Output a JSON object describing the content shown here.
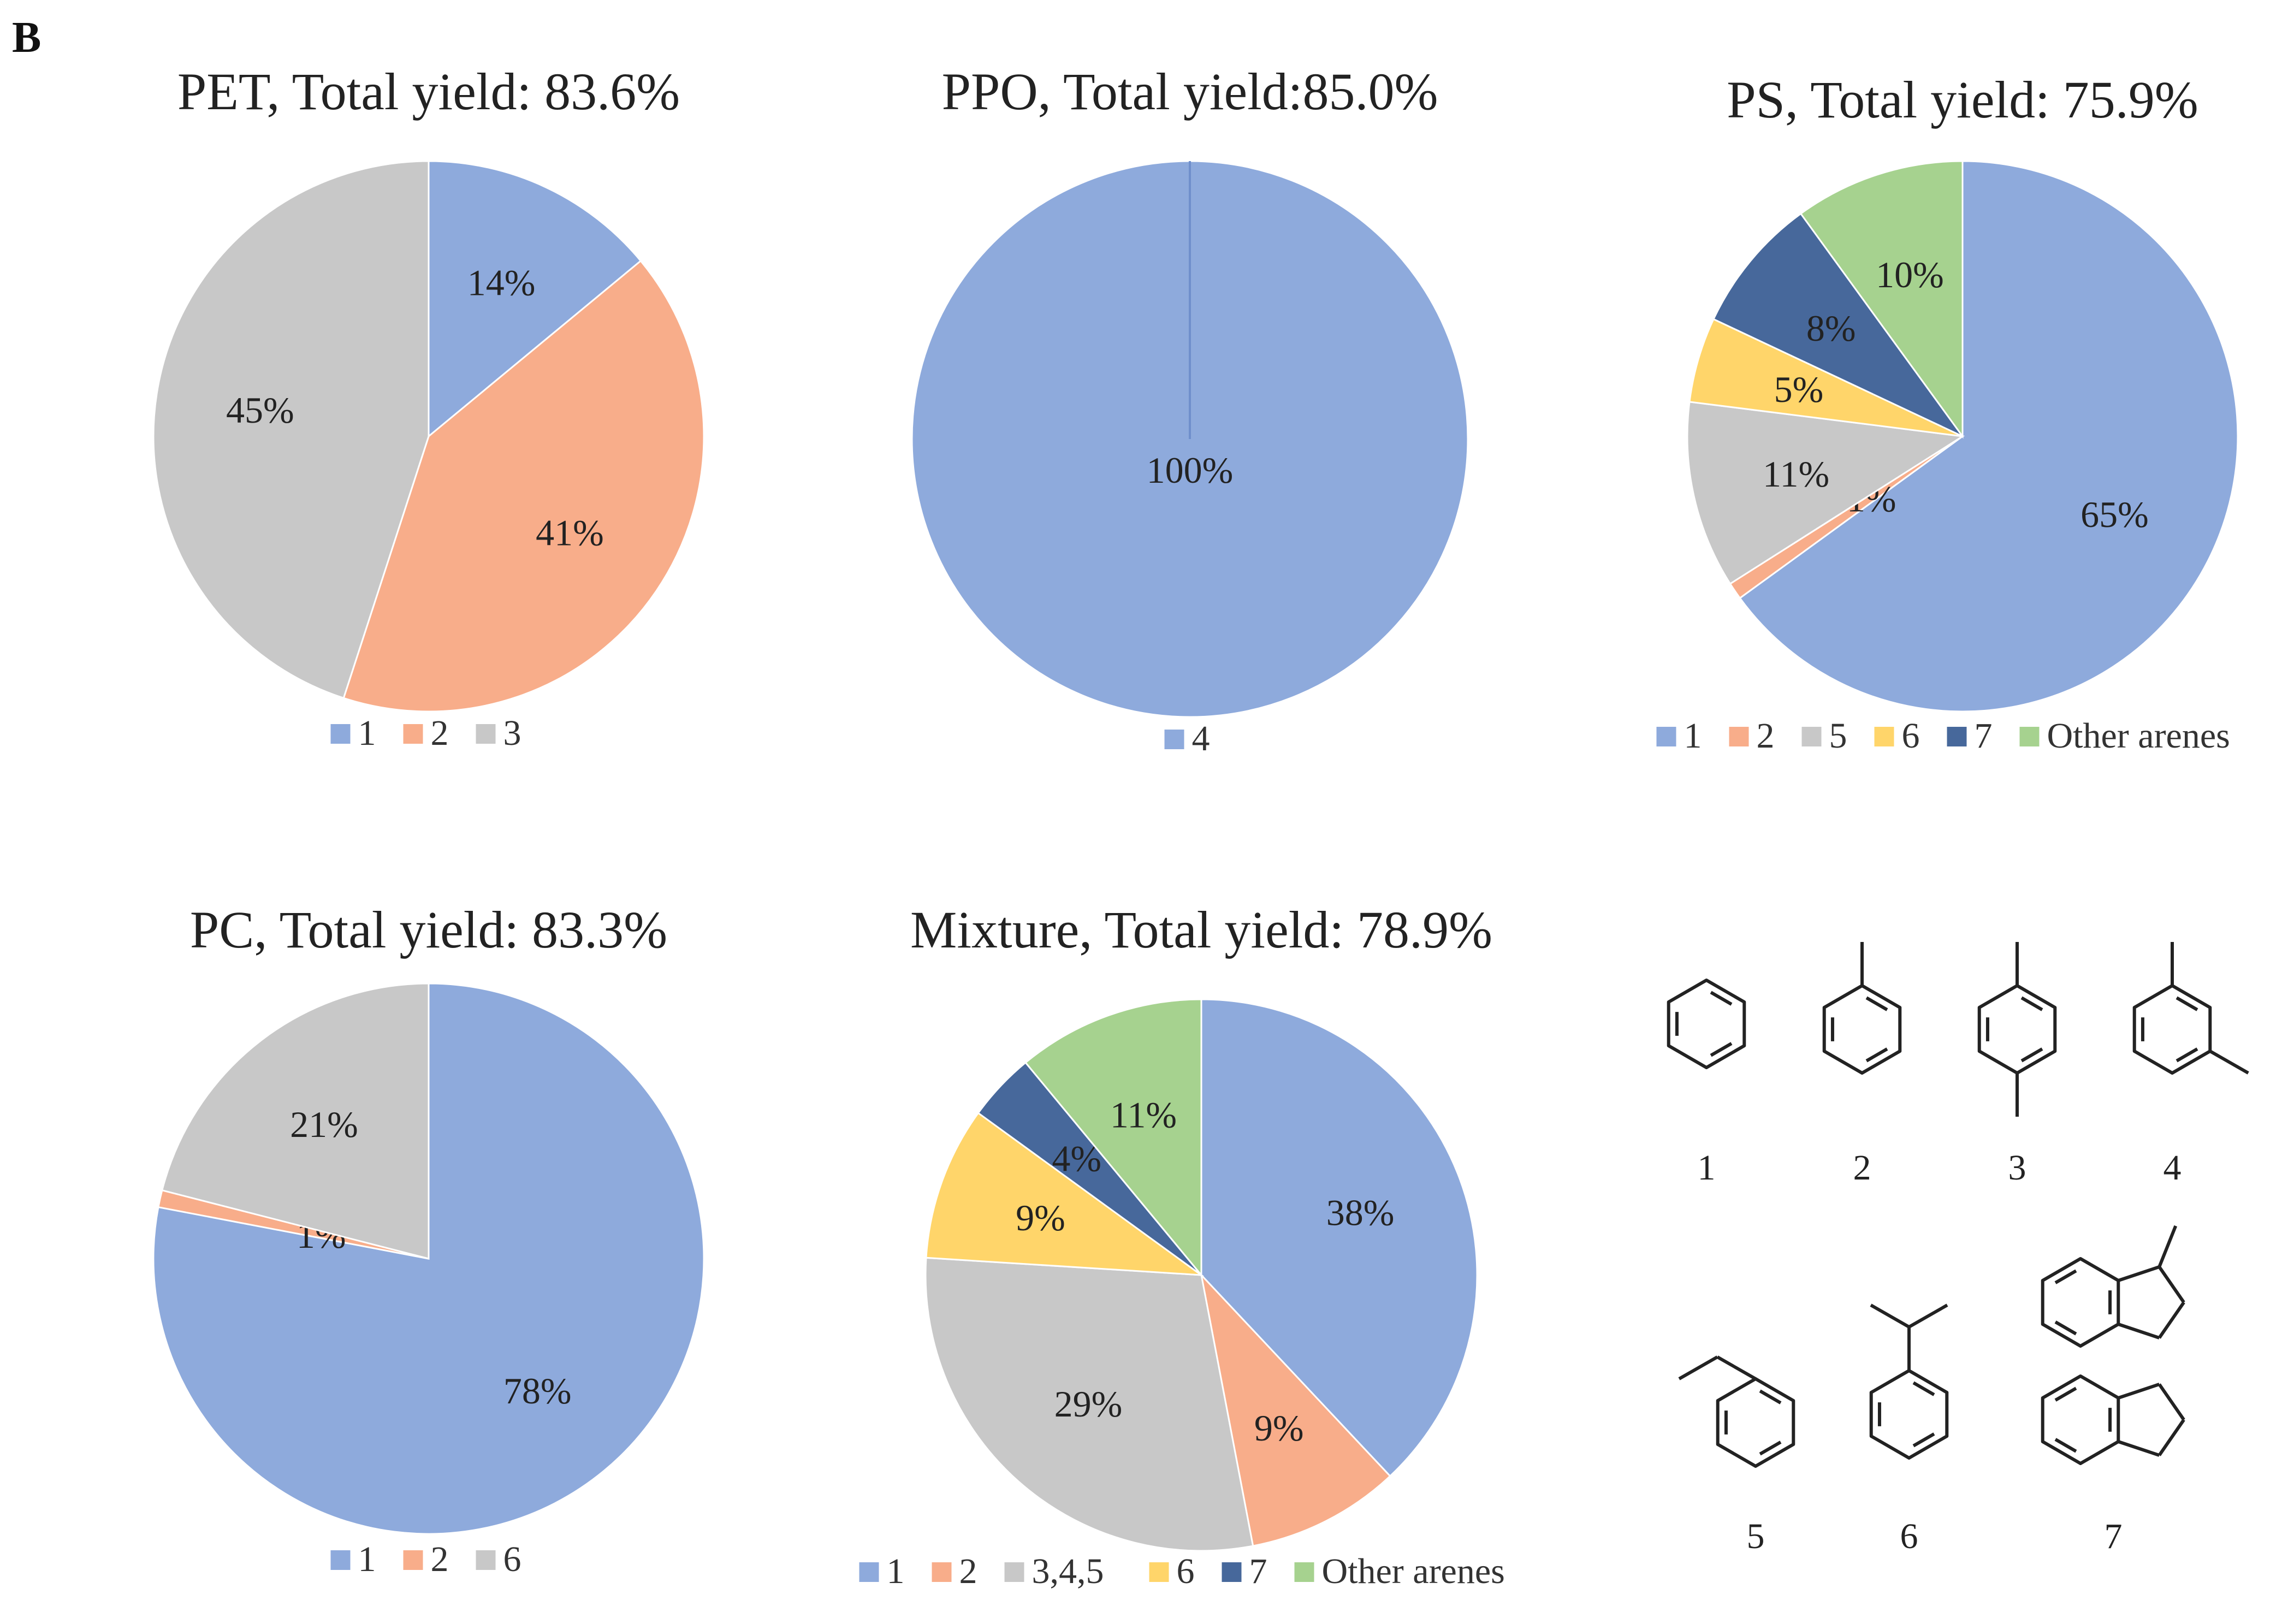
{
  "panel_label": "B",
  "colors": {
    "1": "#8eaadc",
    "2": "#f8ad8a",
    "gray": "#c8c8c8",
    "6": "#ffd56a",
    "7": "#47689b",
    "other": "#a6d28f"
  },
  "chart_data": [
    {
      "type": "pie",
      "title": "PET,  Total yield: 83.6%",
      "categories": [
        "1",
        "2",
        "3"
      ],
      "values": [
        14,
        41,
        45
      ],
      "labels": [
        "14%",
        "41%",
        "45%"
      ],
      "color_keys": [
        "1",
        "2",
        "gray"
      ],
      "legend_position": "bottom"
    },
    {
      "type": "pie",
      "title": "PPO, Total yield:85.0%",
      "categories": [
        "4"
      ],
      "values": [
        100
      ],
      "labels": [
        "100%"
      ],
      "color_keys": [
        "1"
      ],
      "legend_position": "bottom"
    },
    {
      "type": "pie",
      "title": "PS, Total yield: 75.9%",
      "categories": [
        "1",
        "2",
        "5",
        "6",
        "7",
        "Other arenes"
      ],
      "values": [
        65,
        1,
        11,
        5,
        8,
        10
      ],
      "labels": [
        "65%",
        "1%",
        "11%",
        "5%",
        "8%",
        "10%"
      ],
      "color_keys": [
        "1",
        "2",
        "gray",
        "6",
        "7",
        "other"
      ],
      "legend_position": "bottom"
    },
    {
      "type": "pie",
      "title": "PC, Total yield: 83.3%",
      "categories": [
        "1",
        "2",
        "6"
      ],
      "values": [
        78,
        1,
        21
      ],
      "labels": [
        "78%",
        "1%",
        "21%"
      ],
      "color_keys": [
        "1",
        "2",
        "gray"
      ],
      "legend_position": "bottom"
    },
    {
      "type": "pie",
      "title": "Mixture, Total yield: 78.9%",
      "categories": [
        "1",
        "2",
        "3,4,5",
        "6",
        "7",
        "Other arenes"
      ],
      "values": [
        38,
        9,
        29,
        9,
        4,
        11
      ],
      "labels": [
        "38%",
        "9%",
        "29%",
        "9%",
        "4%",
        "11%"
      ],
      "color_keys": [
        "1",
        "2",
        "gray",
        "6",
        "7",
        "other"
      ],
      "legend_position": "bottom"
    }
  ],
  "structures": {
    "labels": [
      "1",
      "2",
      "3",
      "4",
      "5",
      "6",
      "7"
    ]
  }
}
